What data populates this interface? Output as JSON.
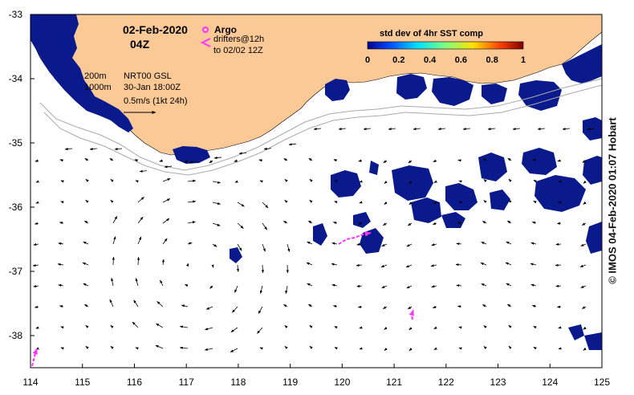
{
  "title": {
    "date": "02-Feb-2020",
    "hour": "04Z"
  },
  "legend": {
    "argo_label": "Argo",
    "drifters_line1": "drifters@12h",
    "drifters_line2": "to 02/02 12Z",
    "argo_color": "#ff33ff",
    "drifter_color": "#ff33ff"
  },
  "info": {
    "contour_200": "200m",
    "contour_1000": "1000m",
    "model": "NRT00 GSL",
    "model_time": "30-Jan 18:00Z",
    "scale_label": "0.5m/s (1kt 24h)"
  },
  "colorbar": {
    "title": "std dev of 4hr SST comp",
    "ticks": [
      "0",
      "0.2",
      "0.4",
      "0.6",
      "0.8",
      "1"
    ]
  },
  "credit": "© IMOS 04-Feb-2020 01:07 Hobart",
  "colors": {
    "land": "#fbc996",
    "sst_patch": "#0a1a8c",
    "arrow": "#000000",
    "contour": "#aaaaaa"
  },
  "chart_data": {
    "type": "map",
    "x_ticks": [
      "114",
      "115",
      "116",
      "117",
      "118",
      "119",
      "120",
      "121",
      "122",
      "123",
      "124",
      "125"
    ],
    "y_ticks": [
      "-33",
      "-34",
      "-35",
      "-36",
      "-37",
      "-38"
    ],
    "xlim": [
      114,
      125
    ],
    "ylim": [
      -38.5,
      -33
    ]
  }
}
